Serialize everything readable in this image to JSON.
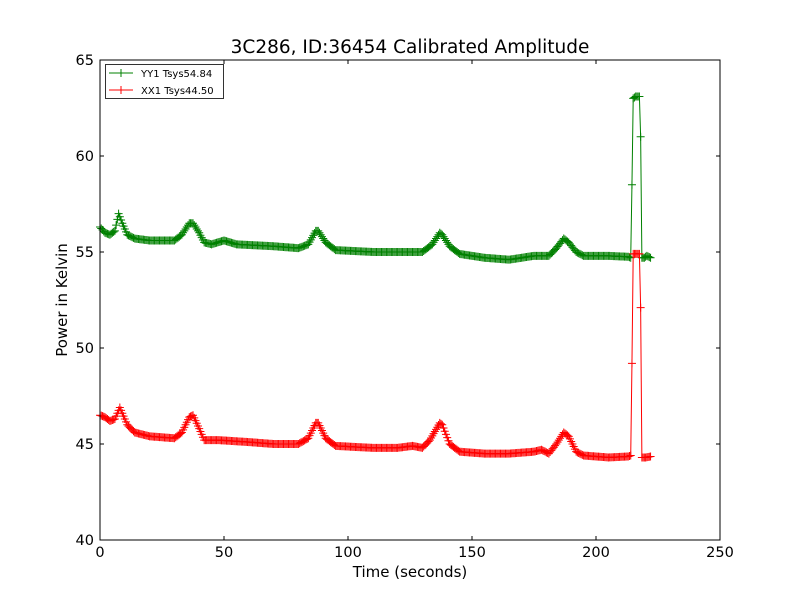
{
  "chart_data": {
    "type": "line",
    "title": "3C286, ID:36454 Calibrated Amplitude",
    "xlabel": "Time (seconds)",
    "ylabel": "Power in Kelvin",
    "xlim": [
      0,
      250
    ],
    "ylim": [
      40,
      65
    ],
    "xticks": [
      0,
      50,
      100,
      150,
      200,
      250
    ],
    "yticks": [
      40,
      45,
      50,
      55,
      60,
      65
    ],
    "grid": false,
    "legend_position": "top-left",
    "marker": "+",
    "series": [
      {
        "name": "YY1 Tsys54.84",
        "color": "#008000",
        "keypoints": [
          [
            0,
            56.3
          ],
          [
            2,
            56.0
          ],
          [
            4,
            55.9
          ],
          [
            6,
            56.1
          ],
          [
            7.5,
            57.0
          ],
          [
            9,
            56.5
          ],
          [
            11,
            55.9
          ],
          [
            14,
            55.7
          ],
          [
            20,
            55.6
          ],
          [
            30,
            55.6
          ],
          [
            33,
            55.9
          ],
          [
            36,
            56.5
          ],
          [
            37.5,
            56.5
          ],
          [
            40,
            56.0
          ],
          [
            42,
            55.5
          ],
          [
            45,
            55.4
          ],
          [
            50,
            55.6
          ],
          [
            55,
            55.4
          ],
          [
            70,
            55.3
          ],
          [
            80,
            55.2
          ],
          [
            84,
            55.4
          ],
          [
            87,
            56.1
          ],
          [
            88,
            56.1
          ],
          [
            91,
            55.5
          ],
          [
            95,
            55.1
          ],
          [
            110,
            55.0
          ],
          [
            125,
            55.0
          ],
          [
            130,
            55.0
          ],
          [
            134,
            55.4
          ],
          [
            137,
            56.0
          ],
          [
            138,
            55.9
          ],
          [
            141,
            55.3
          ],
          [
            145,
            54.9
          ],
          [
            155,
            54.7
          ],
          [
            165,
            54.6
          ],
          [
            175,
            54.8
          ],
          [
            181,
            54.8
          ],
          [
            184,
            55.2
          ],
          [
            187,
            55.7
          ],
          [
            189,
            55.5
          ],
          [
            192,
            55.0
          ],
          [
            195,
            54.8
          ],
          [
            205,
            54.8
          ],
          [
            213,
            54.75
          ],
          [
            214,
            54.7
          ],
          [
            214.5,
            58.5
          ],
          [
            215,
            63.0
          ],
          [
            216,
            63.1
          ],
          [
            217.5,
            63.1
          ],
          [
            218,
            61.0
          ],
          [
            218.5,
            54.7
          ],
          [
            219.5,
            54.7
          ],
          [
            220.5,
            54.8
          ],
          [
            222,
            54.7
          ]
        ]
      },
      {
        "name": "XX1 Tsys44.50",
        "color": "#ff0000",
        "keypoints": [
          [
            0,
            46.5
          ],
          [
            2,
            46.4
          ],
          [
            4,
            46.2
          ],
          [
            6,
            46.3
          ],
          [
            8,
            46.9
          ],
          [
            9,
            46.6
          ],
          [
            11,
            46.0
          ],
          [
            14,
            45.6
          ],
          [
            20,
            45.4
          ],
          [
            30,
            45.3
          ],
          [
            33,
            45.6
          ],
          [
            36,
            46.4
          ],
          [
            37.5,
            46.5
          ],
          [
            40,
            45.8
          ],
          [
            42,
            45.2
          ],
          [
            48,
            45.2
          ],
          [
            60,
            45.1
          ],
          [
            70,
            45.0
          ],
          [
            80,
            45.0
          ],
          [
            84,
            45.3
          ],
          [
            87,
            46.1
          ],
          [
            88,
            46.1
          ],
          [
            91,
            45.3
          ],
          [
            95,
            44.9
          ],
          [
            110,
            44.8
          ],
          [
            120,
            44.8
          ],
          [
            126,
            44.9
          ],
          [
            130,
            44.8
          ],
          [
            133,
            45.2
          ],
          [
            137,
            46.1
          ],
          [
            138,
            46.0
          ],
          [
            141,
            45.0
          ],
          [
            145,
            44.6
          ],
          [
            155,
            44.5
          ],
          [
            165,
            44.5
          ],
          [
            175,
            44.6
          ],
          [
            178,
            44.7
          ],
          [
            181,
            44.5
          ],
          [
            184,
            45.0
          ],
          [
            187,
            45.6
          ],
          [
            189,
            45.4
          ],
          [
            192,
            44.6
          ],
          [
            195,
            44.4
          ],
          [
            205,
            44.3
          ],
          [
            213,
            44.35
          ],
          [
            214,
            44.4
          ],
          [
            214.5,
            49.2
          ],
          [
            215,
            54.9
          ],
          [
            217.5,
            54.9
          ],
          [
            218,
            52.1
          ],
          [
            218.5,
            44.3
          ],
          [
            220,
            44.3
          ],
          [
            222,
            44.35
          ]
        ]
      }
    ]
  }
}
